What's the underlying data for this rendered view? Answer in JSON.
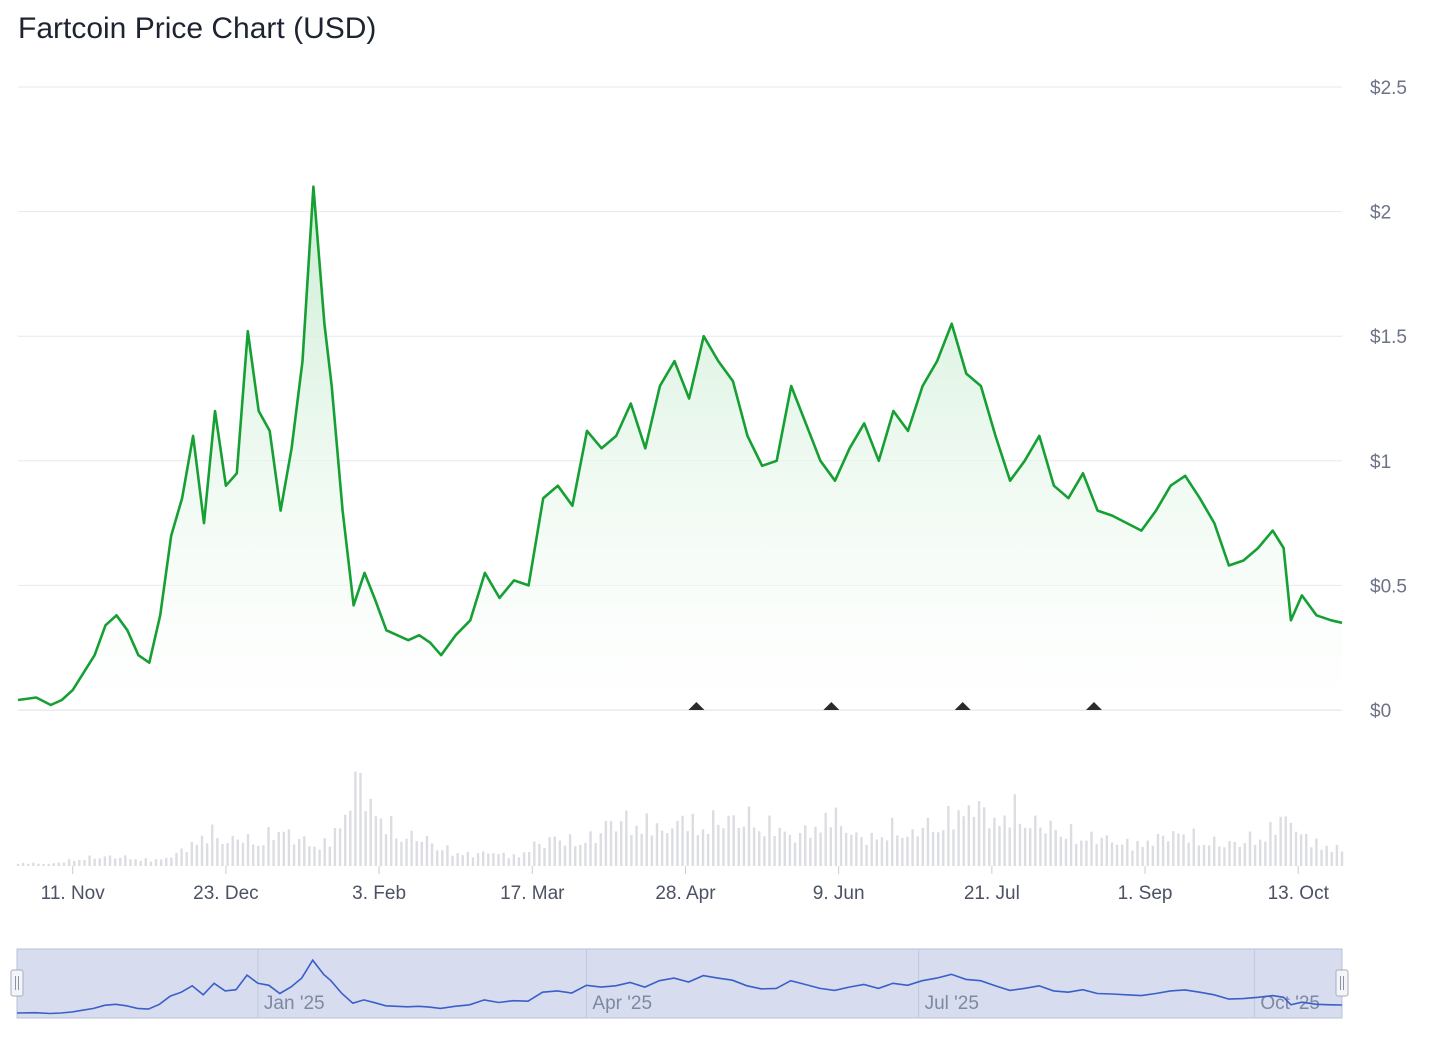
{
  "title": "Fartcoin Price Chart (USD)",
  "colors": {
    "line": "#16a034",
    "area_top": "#c9ecd1",
    "grid": "#e6e8ee",
    "volume": "#dcdde2",
    "navigator_bg": "#d7ddef",
    "navigator_line": "#3a5fc8",
    "marker": "#2b2b2b"
  },
  "chart_data": {
    "type": "area",
    "title": "Fartcoin Price Chart (USD)",
    "xlabel": "",
    "ylabel": "",
    "ylim": [
      0,
      2.5
    ],
    "y_ticks": [
      "$0",
      "$0.5",
      "$1",
      "$1.5",
      "$2",
      "$2.5"
    ],
    "x_ticks": [
      "11. Nov",
      "23. Dec",
      "3. Feb",
      "17. Mar",
      "28. Apr",
      "9. Jun",
      "21. Jul",
      "1. Sep",
      "13. Oct"
    ],
    "grid": true,
    "legend": "none",
    "x": [
      "2024-10-27",
      "2024-11-01",
      "2024-11-05",
      "2024-11-08",
      "2024-11-11",
      "2024-11-14",
      "2024-11-17",
      "2024-11-20",
      "2024-11-23",
      "2024-11-26",
      "2024-11-29",
      "2024-12-02",
      "2024-12-05",
      "2024-12-08",
      "2024-12-11",
      "2024-12-14",
      "2024-12-17",
      "2024-12-20",
      "2024-12-23",
      "2024-12-26",
      "2024-12-29",
      "2025-01-01",
      "2025-01-04",
      "2025-01-07",
      "2025-01-10",
      "2025-01-13",
      "2025-01-16",
      "2025-01-19",
      "2025-01-21",
      "2025-01-24",
      "2025-01-27",
      "2025-01-30",
      "2025-02-02",
      "2025-02-05",
      "2025-02-08",
      "2025-02-11",
      "2025-02-14",
      "2025-02-17",
      "2025-02-20",
      "2025-02-24",
      "2025-02-28",
      "2025-03-04",
      "2025-03-08",
      "2025-03-12",
      "2025-03-16",
      "2025-03-20",
      "2025-03-24",
      "2025-03-28",
      "2025-04-01",
      "2025-04-05",
      "2025-04-09",
      "2025-04-13",
      "2025-04-17",
      "2025-04-21",
      "2025-04-25",
      "2025-04-29",
      "2025-05-03",
      "2025-05-07",
      "2025-05-11",
      "2025-05-15",
      "2025-05-19",
      "2025-05-23",
      "2025-05-27",
      "2025-05-31",
      "2025-06-04",
      "2025-06-08",
      "2025-06-12",
      "2025-06-16",
      "2025-06-20",
      "2025-06-24",
      "2025-06-28",
      "2025-07-02",
      "2025-07-06",
      "2025-07-10",
      "2025-07-14",
      "2025-07-18",
      "2025-07-22",
      "2025-07-26",
      "2025-07-30",
      "2025-08-03",
      "2025-08-07",
      "2025-08-11",
      "2025-08-15",
      "2025-08-19",
      "2025-08-23",
      "2025-08-27",
      "2025-08-31",
      "2025-09-04",
      "2025-09-08",
      "2025-09-12",
      "2025-09-16",
      "2025-09-20",
      "2025-09-24",
      "2025-09-28",
      "2025-10-02",
      "2025-10-06",
      "2025-10-09",
      "2025-10-11",
      "2025-10-14",
      "2025-10-18",
      "2025-10-22",
      "2025-10-25"
    ],
    "series": [
      {
        "values": [
          0.04,
          0.05,
          0.02,
          0.04,
          0.08,
          0.15,
          0.22,
          0.34,
          0.38,
          0.32,
          0.22,
          0.19,
          0.38,
          0.7,
          0.85,
          1.1,
          0.75,
          1.2,
          0.9,
          0.95,
          1.52,
          1.2,
          1.12,
          0.8,
          1.05,
          1.4,
          2.1,
          1.55,
          1.3,
          0.8,
          0.42,
          0.55,
          0.44,
          0.32,
          0.3,
          0.28,
          0.3,
          0.27,
          0.22,
          0.3,
          0.36,
          0.55,
          0.45,
          0.52,
          0.5,
          0.85,
          0.9,
          0.82,
          1.12,
          1.05,
          1.1,
          1.23,
          1.05,
          1.3,
          1.4,
          1.25,
          1.5,
          1.4,
          1.32,
          1.1,
          0.98,
          1.0,
          1.3,
          1.15,
          1.0,
          0.92,
          1.05,
          1.15,
          1.0,
          1.2,
          1.12,
          1.3,
          1.4,
          1.55,
          1.35,
          1.3,
          1.1,
          0.92,
          1.0,
          1.1,
          0.9,
          0.85,
          0.95,
          0.8,
          0.78,
          0.75,
          0.72,
          0.8,
          0.9,
          0.94,
          0.85,
          0.75,
          0.58,
          0.6,
          0.65,
          0.72,
          0.65,
          0.36,
          0.46,
          0.38,
          0.36,
          0.35
        ],
        "markers_at": [
          "2025-05-01",
          "2025-06-07",
          "2025-07-13",
          "2025-08-18"
        ]
      }
    ],
    "volume": [
      0.03,
      0.03,
      0.02,
      0.03,
      0.06,
      0.08,
      0.09,
      0.1,
      0.09,
      0.08,
      0.06,
      0.07,
      0.12,
      0.2,
      0.3,
      0.35,
      0.25,
      0.3,
      0.25,
      0.3,
      0.4,
      0.3,
      0.25,
      0.2,
      0.3,
      0.55,
      0.95,
      0.6,
      0.45,
      0.35,
      0.3,
      0.28,
      0.22,
      0.15,
      0.13,
      0.12,
      0.15,
      0.12,
      0.1,
      0.18,
      0.25,
      0.3,
      0.25,
      0.3,
      0.28,
      0.45,
      0.5,
      0.4,
      0.48,
      0.35,
      0.42,
      0.5,
      0.4,
      0.45,
      0.52,
      0.45,
      0.5,
      0.42,
      0.4,
      0.3,
      0.35,
      0.4,
      0.55,
      0.42,
      0.3,
      0.28,
      0.35,
      0.4,
      0.3,
      0.42,
      0.4,
      0.5,
      0.55,
      0.65,
      0.5,
      0.45,
      0.6,
      0.45,
      0.42,
      0.4,
      0.35,
      0.3,
      0.3,
      0.28,
      0.25,
      0.22,
      0.25,
      0.28,
      0.35,
      0.32,
      0.3,
      0.25,
      0.22,
      0.25,
      0.28,
      0.3,
      0.45,
      0.5,
      0.3,
      0.25,
      0.2,
      0.16
    ],
    "navigator": {
      "labels": [
        "Jan '25",
        "Apr '25",
        "Jul '25",
        "Oct '25"
      ]
    }
  }
}
